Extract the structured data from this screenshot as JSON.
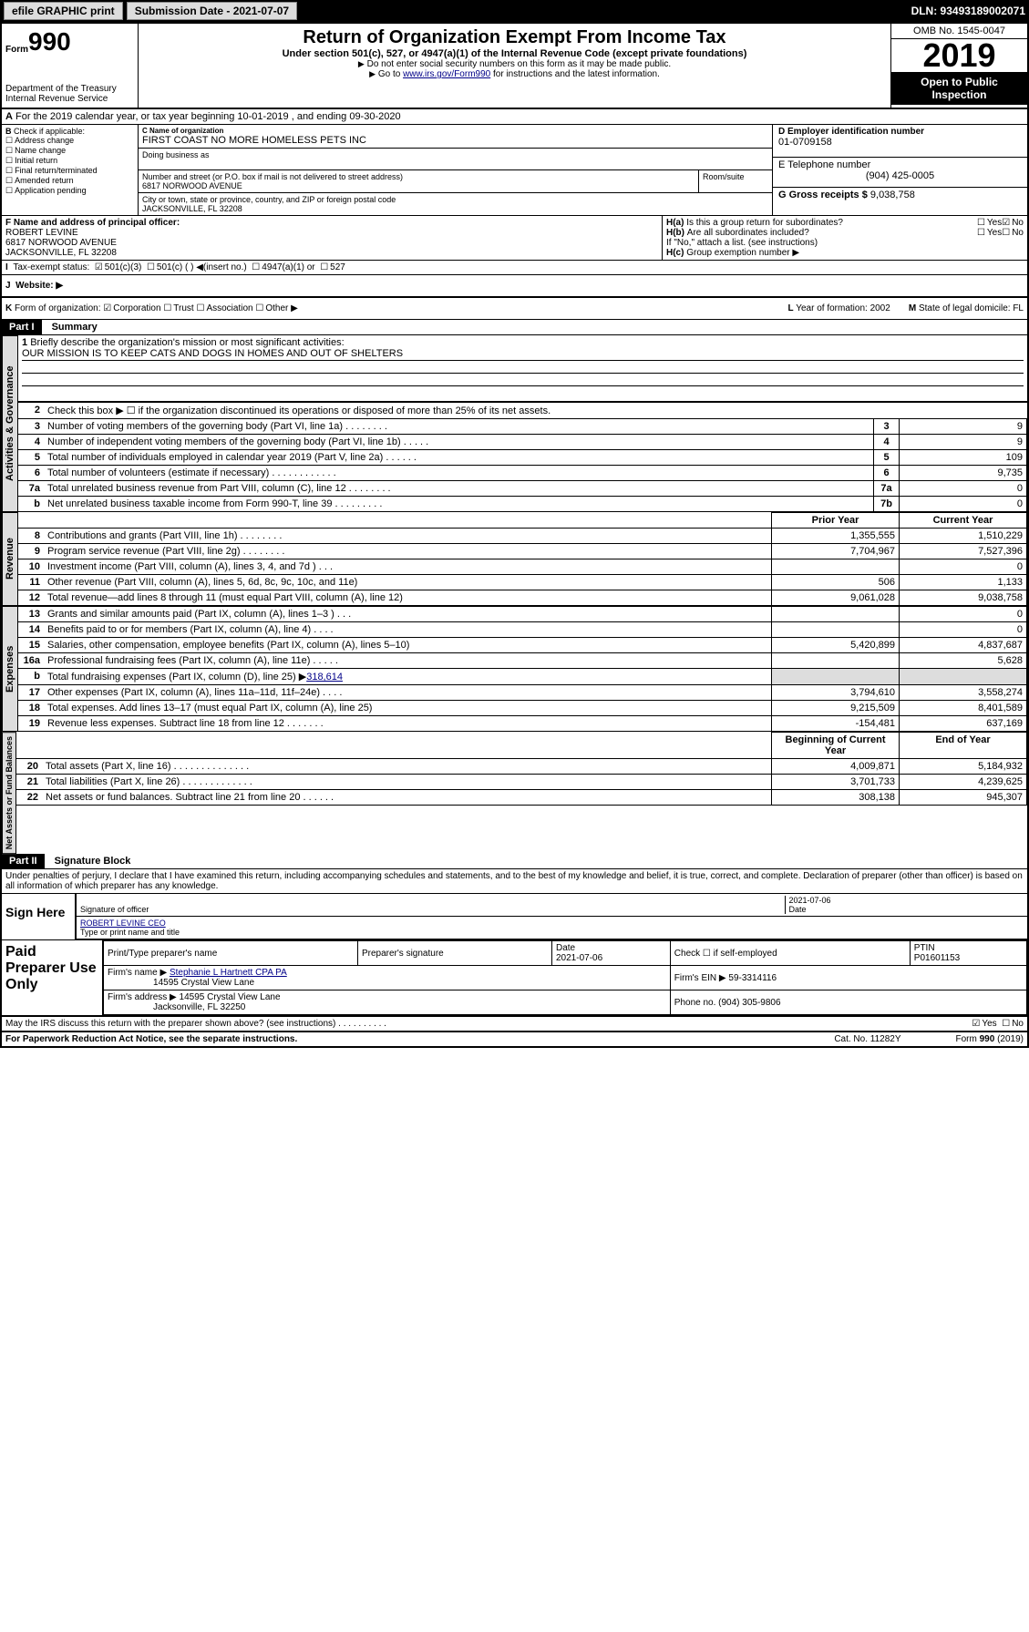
{
  "topbar": {
    "efile": "efile GRAPHIC print",
    "submission_label": "Submission Date - 2021-07-07",
    "dln": "DLN: 93493189002071"
  },
  "header": {
    "form_prefix": "Form",
    "form_no": "990",
    "dept": "Department of the Treasury",
    "irs_label": "Internal Revenue Service",
    "title": "Return of Organization Exempt From Income Tax",
    "subtitle": "Under section 501(c), 527, or 4947(a)(1) of the Internal Revenue Code (except private foundations)",
    "note1": "Do not enter social security numbers on this form as it may be made public.",
    "note2_pre": "Go to ",
    "note2_link": "www.irs.gov/Form990",
    "note2_post": " for instructions and the latest information.",
    "omb": "OMB No. 1545-0047",
    "year": "2019",
    "open": "Open to Public Inspection"
  },
  "row_a": "For the 2019 calendar year, or tax year beginning 10-01-2019    , and ending 09-30-2020",
  "check_b": {
    "label": "Check if applicable:",
    "opts": [
      "Address change",
      "Name change",
      "Initial return",
      "Final return/terminated",
      "Amended return",
      "Application pending"
    ]
  },
  "org": {
    "name_lbl": "C Name of organization",
    "name": "FIRST COAST NO MORE HOMELESS PETS INC",
    "dba_lbl": "Doing business as",
    "addr_lbl": "Number and street (or P.O. box if mail is not delivered to street address)",
    "addr": "6817 NORWOOD AVENUE",
    "room_lbl": "Room/suite",
    "city_lbl": "City or town, state or province, country, and ZIP or foreign postal code",
    "city": "JACKSONVILLE, FL  32208"
  },
  "col_d": {
    "ein_lbl": "D Employer identification number",
    "ein": "01-0709158",
    "tel_lbl": "E Telephone number",
    "tel": "(904) 425-0005",
    "gross_lbl": "G Gross receipts $ ",
    "gross": "9,038,758"
  },
  "officer": {
    "lbl": "F  Name and address of principal officer:",
    "name": "ROBERT LEVINE",
    "addr1": "6817 NORWOOD AVENUE",
    "addr2": "JACKSONVILLE, FL  32208"
  },
  "h_block": {
    "ha": "Is this a group return for subordinates?",
    "hb": "Are all subordinates included?",
    "hnote": "If \"No,\" attach a list. (see instructions)",
    "hc": "Group exemption number ▶"
  },
  "tax_status": "Tax-exempt status:",
  "tax_opts": {
    "a": "501(c)(3)",
    "b": "501(c) (   ) ◀(insert no.)",
    "c": "4947(a)(1) or",
    "d": "527"
  },
  "website_lbl": "Website: ▶",
  "k_row": {
    "k": "Form of organization:",
    "opts": {
      "corp": "Corporation",
      "trust": "Trust",
      "assoc": "Association",
      "other": "Other ▶"
    },
    "l_lbl": "Year of formation: ",
    "l_val": "2002",
    "m_lbl": "State of legal domicile: ",
    "m_val": "FL"
  },
  "part1": {
    "hdr": "Part I",
    "title": "Summary",
    "q1": "Briefly describe the organization's mission or most significant activities:",
    "mission": "OUR MISSION IS TO KEEP CATS AND DOGS IN HOMES AND OUT OF SHELTERS",
    "q2": "Check this box ▶ ☐  if the organization discontinued its operations or disposed of more than 25% of its net assets.",
    "lines_gov": [
      {
        "n": "3",
        "d": "Number of voting members of the governing body (Part VI, line 1a)   .    .    .    .    .    .    .    .",
        "b": "3",
        "v": "9"
      },
      {
        "n": "4",
        "d": "Number of independent voting members of the governing body (Part VI, line 1b)   .    .    .    .    .",
        "b": "4",
        "v": "9"
      },
      {
        "n": "5",
        "d": "Total number of individuals employed in calendar year 2019 (Part V, line 2a)   .    .    .    .    .    .",
        "b": "5",
        "v": "109"
      },
      {
        "n": "6",
        "d": "Total number of volunteers (estimate if necessary)   .    .    .    .    .    .    .    .    .    .    .    .",
        "b": "6",
        "v": "9,735"
      },
      {
        "n": "7a",
        "d": "Total unrelated business revenue from Part VIII, column (C), line 12   .    .    .    .    .    .    .    .",
        "b": "7a",
        "v": "0"
      },
      {
        "n": "b",
        "d": "Net unrelated business taxable income from Form 990-T, line 39   .    .    .    .    .    .    .    .    .",
        "b": "7b",
        "v": "0"
      }
    ],
    "col_hdr_prior": "Prior Year",
    "col_hdr_curr": "Current Year",
    "lines_rev": [
      {
        "n": "8",
        "d": "Contributions and grants (Part VIII, line 1h)   .    .    .    .    .    .    .    .",
        "p": "1,355,555",
        "c": "1,510,229"
      },
      {
        "n": "9",
        "d": "Program service revenue (Part VIII, line 2g)   .    .    .    .    .    .    .    .",
        "p": "7,704,967",
        "c": "7,527,396"
      },
      {
        "n": "10",
        "d": "Investment income (Part VIII, column (A), lines 3, 4, and 7d )   .    .    .",
        "p": "",
        "c": "0"
      },
      {
        "n": "11",
        "d": "Other revenue (Part VIII, column (A), lines 5, 6d, 8c, 9c, 10c, and 11e)",
        "p": "506",
        "c": "1,133"
      },
      {
        "n": "12",
        "d": "Total revenue—add lines 8 through 11 (must equal Part VIII, column (A), line 12)",
        "p": "9,061,028",
        "c": "9,038,758"
      }
    ],
    "lines_exp": [
      {
        "n": "13",
        "d": "Grants and similar amounts paid (Part IX, column (A), lines 1–3 )   .    .    .",
        "p": "",
        "c": "0"
      },
      {
        "n": "14",
        "d": "Benefits paid to or for members (Part IX, column (A), line 4)   .    .    .    .",
        "p": "",
        "c": "0"
      },
      {
        "n": "15",
        "d": "Salaries, other compensation, employee benefits (Part IX, column (A), lines 5–10)",
        "p": "5,420,899",
        "c": "4,837,687"
      },
      {
        "n": "16a",
        "d": "Professional fundraising fees (Part IX, column (A), line 11e)   .    .    .    .    .",
        "p": "",
        "c": "5,628"
      }
    ],
    "line_16b": {
      "n": "b",
      "d_pre": "Total fundraising expenses (Part IX, column (D), line 25) ▶",
      "d_val": "318,614"
    },
    "lines_exp2": [
      {
        "n": "17",
        "d": "Other expenses (Part IX, column (A), lines 11a–11d, 11f–24e)   .    .    .    .",
        "p": "3,794,610",
        "c": "3,558,274"
      },
      {
        "n": "18",
        "d": "Total expenses. Add lines 13–17 (must equal Part IX, column (A), line 25)",
        "p": "9,215,509",
        "c": "8,401,589"
      },
      {
        "n": "19",
        "d": "Revenue less expenses. Subtract line 18 from line 12   .    .    .    .    .    .    .",
        "p": "-154,481",
        "c": "637,169"
      }
    ],
    "col_hdr_beg": "Beginning of Current Year",
    "col_hdr_end": "End of Year",
    "lines_net": [
      {
        "n": "20",
        "d": "Total assets (Part X, line 16)   .    .    .    .    .    .    .    .    .    .    .    .    .    .",
        "p": "4,009,871",
        "c": "5,184,932"
      },
      {
        "n": "21",
        "d": "Total liabilities (Part X, line 26)   .    .    .    .    .    .    .    .    .    .    .    .    .",
        "p": "3,701,733",
        "c": "4,239,625"
      },
      {
        "n": "22",
        "d": "Net assets or fund balances. Subtract line 21 from line 20   .    .    .    .    .    .",
        "p": "308,138",
        "c": "945,307"
      }
    ]
  },
  "side_labels": {
    "gov": "Activities & Governance",
    "rev": "Revenue",
    "exp": "Expenses",
    "net": "Net Assets or Fund Balances"
  },
  "part2": {
    "hdr": "Part II",
    "title": "Signature Block",
    "decl": "Under penalties of perjury, I declare that I have examined this return, including accompanying schedules and statements, and to the best of my knowledge and belief, it is true, correct, and complete. Declaration of preparer (other than officer) is based on all information of which preparer has any knowledge."
  },
  "sign": {
    "here": "Sign Here",
    "sig_lbl": "Signature of officer",
    "date": "2021-07-06",
    "date_lbl": "Date",
    "name": "ROBERT LEVINE CEO",
    "name_lbl": "Type or print name and title"
  },
  "paid": {
    "label": "Paid Preparer Use Only",
    "h1": "Print/Type preparer's name",
    "h2": "Preparer's signature",
    "h3_lbl": "Date",
    "h3": "2021-07-06",
    "h4": "Check ☐ if self-employed",
    "h5_lbl": "PTIN",
    "h5": "P01601153",
    "firm_name_lbl": "Firm's name    ▶",
    "firm_name": "Stephanie L Hartnett CPA PA",
    "firm_name2": "14595 Crystal View Lane",
    "firm_ein_lbl": "Firm's EIN ▶",
    "firm_ein": "59-3314116",
    "firm_addr_lbl": "Firm's address ▶",
    "firm_addr": "14595 Crystal View Lane",
    "firm_addr2": "Jacksonville, FL  32250",
    "phone_lbl": "Phone no. ",
    "phone": "(904) 305-9806"
  },
  "footer": {
    "discuss": "May the IRS discuss this return with the preparer shown above? (see instructions)    .    .    .    .    .    .    .    .    .    .",
    "pra": "For Paperwork Reduction Act Notice, see the separate instructions.",
    "cat": "Cat. No. 11282Y",
    "form": "Form 990 (2019)"
  },
  "yesno": {
    "yes": "Yes",
    "no": "No"
  }
}
